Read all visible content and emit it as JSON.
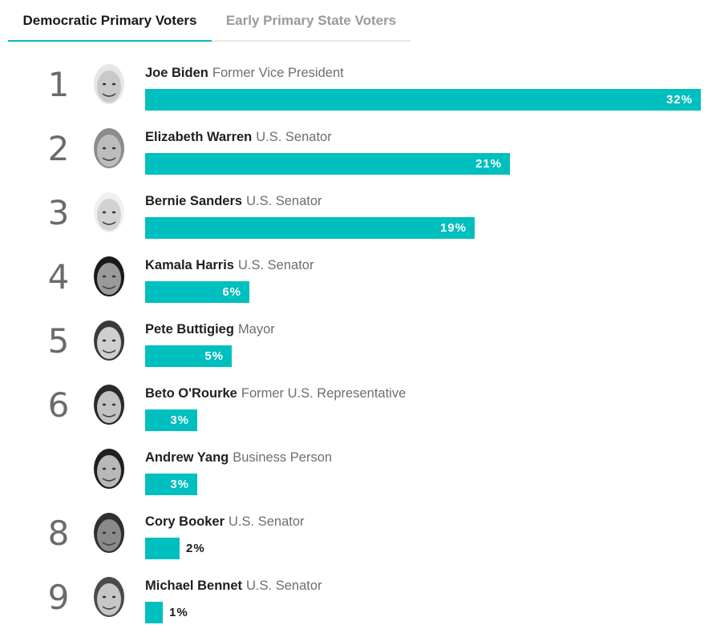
{
  "tabs": [
    {
      "label": "Democratic Primary Voters",
      "active": true
    },
    {
      "label": "Early Primary State Voters",
      "active": false
    }
  ],
  "colors": {
    "bar": "#00bfbf",
    "active_tab_underline": "#00bfbf",
    "rank_text": "#6b6b6b"
  },
  "chart_data": {
    "type": "bar",
    "orientation": "horizontal",
    "unit": "%",
    "categories": [
      "Joe Biden",
      "Elizabeth Warren",
      "Bernie Sanders",
      "Kamala Harris",
      "Pete Buttigieg",
      "Beto O'Rourke",
      "Andrew Yang",
      "Cory Booker",
      "Michael Bennet"
    ],
    "values": [
      32,
      21,
      19,
      6,
      5,
      3,
      3,
      2,
      1
    ],
    "xlim": [
      0,
      32
    ],
    "grid": false,
    "legend": "none",
    "rows": [
      {
        "rank": "1",
        "name": "Joe Biden",
        "role": "Former Vice President",
        "value": 32,
        "label": "32%",
        "icon": "candidate-portrait-icon"
      },
      {
        "rank": "2",
        "name": "Elizabeth Warren",
        "role": "U.S. Senator",
        "value": 21,
        "label": "21%",
        "icon": "candidate-portrait-icon"
      },
      {
        "rank": "3",
        "name": "Bernie Sanders",
        "role": "U.S. Senator",
        "value": 19,
        "label": "19%",
        "icon": "candidate-portrait-icon"
      },
      {
        "rank": "4",
        "name": "Kamala Harris",
        "role": "U.S. Senator",
        "value": 6,
        "label": "6%",
        "icon": "candidate-portrait-icon"
      },
      {
        "rank": "5",
        "name": "Pete Buttigieg",
        "role": "Mayor",
        "value": 5,
        "label": "5%",
        "icon": "candidate-portrait-icon"
      },
      {
        "rank": "6",
        "name": "Beto O'Rourke",
        "role": "Former U.S. Representative",
        "value": 3,
        "label": "3%",
        "icon": "candidate-portrait-icon"
      },
      {
        "rank": "",
        "name": "Andrew Yang",
        "role": "Business Person",
        "value": 3,
        "label": "3%",
        "icon": "candidate-portrait-icon"
      },
      {
        "rank": "8",
        "name": "Cory Booker",
        "role": "U.S. Senator",
        "value": 2,
        "label": "2%",
        "icon": "candidate-portrait-icon"
      },
      {
        "rank": "9",
        "name": "Michael Bennet",
        "role": "U.S. Senator",
        "value": 1,
        "label": "1%",
        "icon": "candidate-portrait-icon"
      }
    ]
  }
}
